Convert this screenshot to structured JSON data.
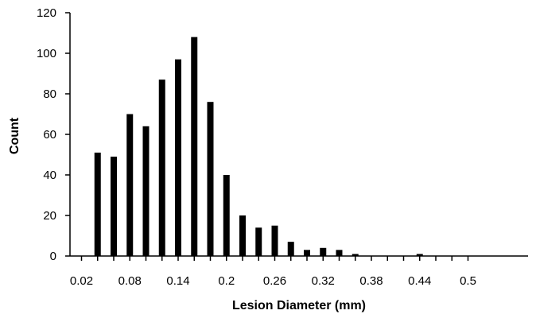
{
  "chart_data": {
    "type": "bar",
    "title": "",
    "xlabel": "Lesion Diameter (mm)",
    "ylabel": "Count",
    "ylim": [
      0,
      120
    ],
    "yticks": [
      0,
      20,
      40,
      60,
      80,
      100,
      120
    ],
    "categories": [
      0.02,
      0.04,
      0.06,
      0.08,
      0.1,
      0.12,
      0.14,
      0.16,
      0.18,
      0.2,
      0.22,
      0.24,
      0.26,
      0.28,
      0.3,
      0.32,
      0.34,
      0.36,
      0.38,
      0.4,
      0.42,
      0.44,
      0.46,
      0.48,
      0.5
    ],
    "xtick_labels": [
      "0.02",
      "0.08",
      "0.14",
      "0.2",
      "0.26",
      "0.32",
      "0.38",
      "0.44",
      "0.5"
    ],
    "series": [
      {
        "values": [
          0,
          51,
          49,
          70,
          64,
          87,
          97,
          108,
          76,
          40,
          20,
          14,
          15,
          7,
          3,
          4,
          3,
          1,
          0,
          0,
          0,
          1,
          0,
          0,
          0
        ]
      }
    ],
    "grid": false,
    "legend": "none",
    "bar_color": "#000000"
  }
}
